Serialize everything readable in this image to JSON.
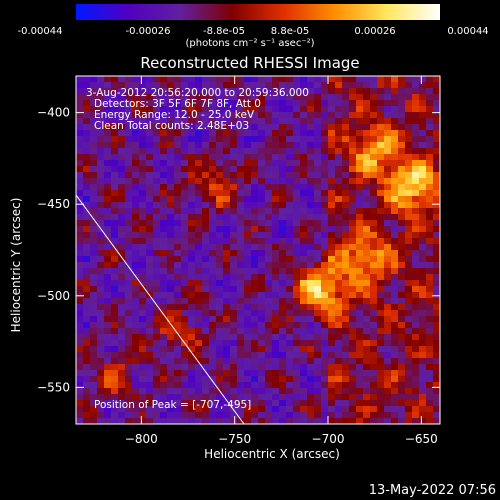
{
  "colorbar": {
    "ticks": [
      "-0.00044",
      "-0.00026",
      "-8.8e-05",
      "8.8e-05",
      "0.00026",
      "0.00044"
    ],
    "units": "(photons cm⁻² s⁻¹ asec⁻²)",
    "colors": [
      "#0018ff",
      "#5000c0",
      "#6020a0",
      "#800000",
      "#e03000",
      "#ff9000",
      "#ffe860",
      "#ffffff"
    ]
  },
  "chart_data": {
    "type": "heatmap",
    "title": "Reconstructed RHESSI Image",
    "xlabel": "Heliocentric X (arcsec)",
    "ylabel": "Heliocentric Y (arcsec)",
    "xlim": [
      -835,
      -640
    ],
    "ylim": [
      -570,
      -380
    ],
    "xticks": [
      -800,
      -750,
      -700,
      -650
    ],
    "yticks": [
      -400,
      -450,
      -500,
      -550
    ],
    "xtick_labels": [
      "−800",
      "−750",
      "−700",
      "−650"
    ],
    "ytick_labels": [
      "−400",
      "−450",
      "−500",
      "−550"
    ],
    "annotations": [
      "3-Aug-2012 20:56:20.000 to 20:59:36.000",
      "Detectors: 3F 5F 6F 7F 8F, Att 0",
      "Energy Range: 12.0 - 25.0 keV",
      "Clean     Total counts: 2.48E+03"
    ],
    "peak_label": "Position of Peak = [-707,-495]",
    "peak": [
      -707,
      -495
    ],
    "limb_line": [
      [
        -835,
        -445
      ],
      [
        -745,
        -570
      ]
    ],
    "bright_sources": [
      {
        "x": -705,
        "y": -497,
        "value": 0.00044
      },
      {
        "x": -655,
        "y": -440,
        "value": 0.0004
      },
      {
        "x": -675,
        "y": -420,
        "value": 0.0003
      },
      {
        "x": -760,
        "y": -440,
        "value": 0.00022
      },
      {
        "x": -780,
        "y": -520,
        "value": 0.0002
      },
      {
        "x": -680,
        "y": -480,
        "value": 0.0003
      },
      {
        "x": -815,
        "y": -545,
        "value": 0.00018
      }
    ],
    "colormap_range": [
      -0.00044,
      0.00044
    ]
  },
  "timestamp": "13-May-2022 07:56"
}
